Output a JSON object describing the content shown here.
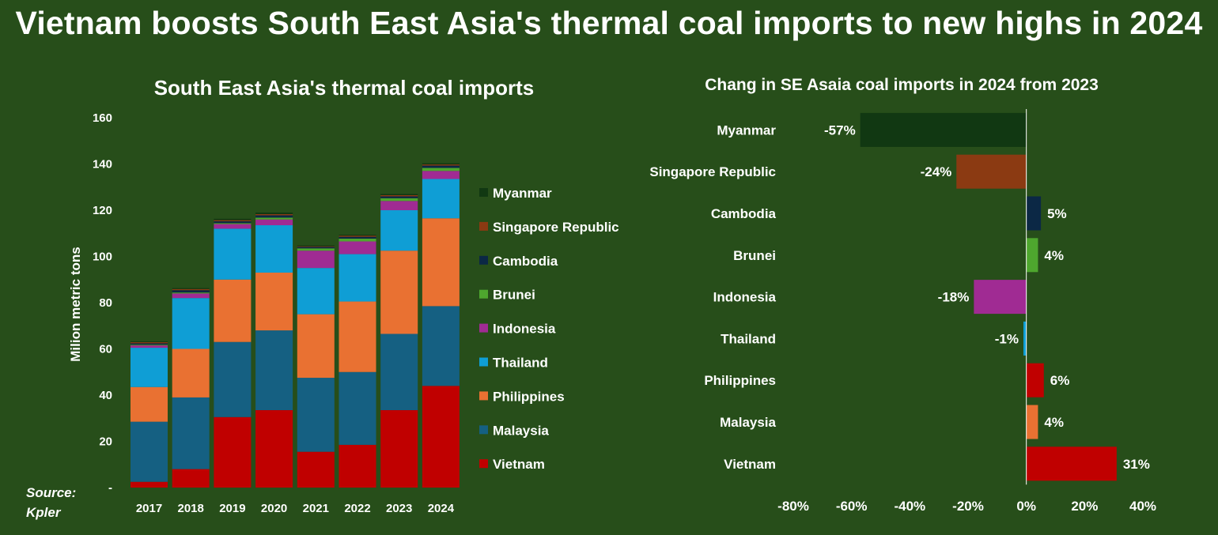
{
  "title": "Vietnam boosts South East Asia's thermal coal imports to new highs in 2024",
  "source": "Source:\nKpler",
  "colors": {
    "background": "#274e1a",
    "Myanmar": "#113812",
    "Singapore Republic": "#8b3a12",
    "Cambodia": "#0b2845",
    "Brunei": "#4ea72e",
    "Indonesia": "#a02b93",
    "Thailand": "#0f9ed5",
    "Philippines": "#e97132",
    "Malaysia": "#156082",
    "Vietnam": "#c00000"
  },
  "chart_data": [
    {
      "type": "bar",
      "stacked": true,
      "title": "South East Asia's thermal coal imports",
      "ylabel": "Milion metric tons",
      "xlabel": "",
      "ylim": [
        0,
        160
      ],
      "yticks": [
        0,
        20,
        40,
        60,
        80,
        100,
        120,
        140,
        160
      ],
      "ytick_labels": [
        "-",
        "20",
        "40",
        "60",
        "80",
        "100",
        "120",
        "140",
        "160"
      ],
      "legend_position": "right",
      "categories": [
        "2017",
        "2018",
        "2019",
        "2020",
        "2021",
        "2022",
        "2023",
        "2024"
      ],
      "series": [
        {
          "name": "Vietnam",
          "values": [
            2.5,
            8,
            30.5,
            33.5,
            15.5,
            18.5,
            33.5,
            44
          ]
        },
        {
          "name": "Malaysia",
          "values": [
            26,
            31,
            32.5,
            34.5,
            32,
            31.5,
            33,
            34.5
          ]
        },
        {
          "name": "Philippines",
          "values": [
            15,
            21,
            27,
            25,
            27.5,
            30.5,
            36,
            38
          ]
        },
        {
          "name": "Thailand",
          "values": [
            17,
            22,
            22,
            20.5,
            20,
            20.5,
            17.5,
            17
          ]
        },
        {
          "name": "Indonesia",
          "values": [
            1,
            2,
            2,
            2.5,
            7.5,
            5.5,
            4,
            3.5
          ]
        },
        {
          "name": "Brunei",
          "values": [
            0.3,
            0.4,
            0.4,
            0.8,
            1,
            1.2,
            1.2,
            1.3
          ]
        },
        {
          "name": "Cambodia",
          "values": [
            0.6,
            1,
            0.8,
            1,
            0.6,
            0.8,
            0.8,
            1
          ]
        },
        {
          "name": "Singapore Republic",
          "values": [
            0.5,
            0.5,
            0.5,
            0.5,
            0.3,
            0.5,
            0.5,
            0.5
          ]
        },
        {
          "name": "Myanmar",
          "values": [
            0.3,
            0.4,
            0.6,
            0.7,
            0.4,
            0.4,
            0.5,
            0.5
          ]
        }
      ],
      "legend_order": [
        "Myanmar",
        "Singapore Republic",
        "Cambodia",
        "Brunei",
        "Indonesia",
        "Thailand",
        "Philippines",
        "Malaysia",
        "Vietnam"
      ]
    },
    {
      "type": "bar",
      "orientation": "horizontal",
      "title": "Chang in SE Asaia coal imports in 2024 from 2023",
      "xlabel": "",
      "ylabel": "",
      "xlim": [
        -80,
        40
      ],
      "xticks": [
        -80,
        -60,
        -40,
        -20,
        0,
        20,
        40
      ],
      "xtick_labels": [
        "-80%",
        "-60%",
        "-40%",
        "-20%",
        "0%",
        "20%",
        "40%"
      ],
      "categories": [
        "Myanmar",
        "Singapore Republic",
        "Cambodia",
        "Brunei",
        "Indonesia",
        "Thailand",
        "Philippines",
        "Malaysia",
        "Vietnam"
      ],
      "values": [
        -57,
        -24,
        5,
        4,
        -18,
        -1,
        6,
        4,
        31
      ],
      "value_labels": [
        "-57%",
        "-24%",
        "5%",
        "4%",
        "-18%",
        "-1%",
        "6%",
        "4%",
        "31%"
      ],
      "bar_colors": [
        "#113812",
        "#8b3a12",
        "#0b2845",
        "#4ea72e",
        "#a02b93",
        "#0f9ed5",
        "#c00000",
        "#e97132",
        "#c00000"
      ]
    }
  ]
}
